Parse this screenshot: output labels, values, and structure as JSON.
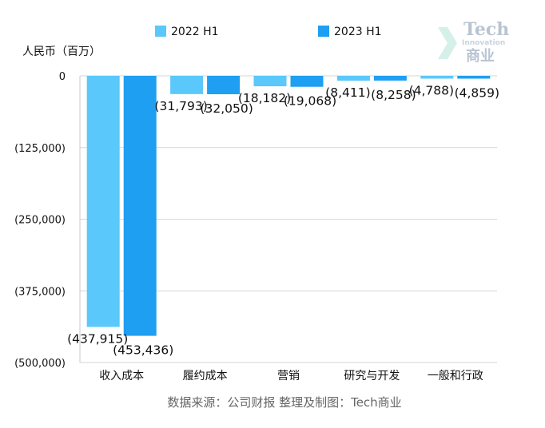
{
  "chart_data": {
    "type": "bar",
    "ylabel": "人民币（百万）",
    "categories": [
      "收入成本",
      "履约成本",
      "营销",
      "研究与开发",
      "一般和行政"
    ],
    "series": [
      {
        "name": "2022 H1",
        "color": "#5ac8fa",
        "values": [
          -437915,
          -31793,
          -18182,
          -8411,
          -4788
        ],
        "labels": [
          "(437,915)",
          "(31,793)",
          "(18,182)",
          "(8,411)",
          "(4,788)"
        ]
      },
      {
        "name": "2023 H1",
        "color": "#1e9ff2",
        "values": [
          -453436,
          -32050,
          -19068,
          -8258,
          -4859
        ],
        "labels": [
          "(453,436)",
          "(32,050)",
          "(19,068)",
          "(8,258)",
          "(4,859)"
        ]
      }
    ],
    "ylim": [
      -500000,
      0
    ],
    "yticks": [
      0,
      -125000,
      -250000,
      -375000,
      -500000
    ],
    "ytick_labels": [
      "0",
      "(125,000)",
      "(250,000)",
      "(375,000)",
      "(500,000)"
    ],
    "grid": true,
    "legend": "top"
  },
  "source_text": "数据来源：公司财报 整理及制图：Tech商业",
  "watermark": {
    "line1": "Tech",
    "line2": "Innovation",
    "line3": "商业"
  }
}
